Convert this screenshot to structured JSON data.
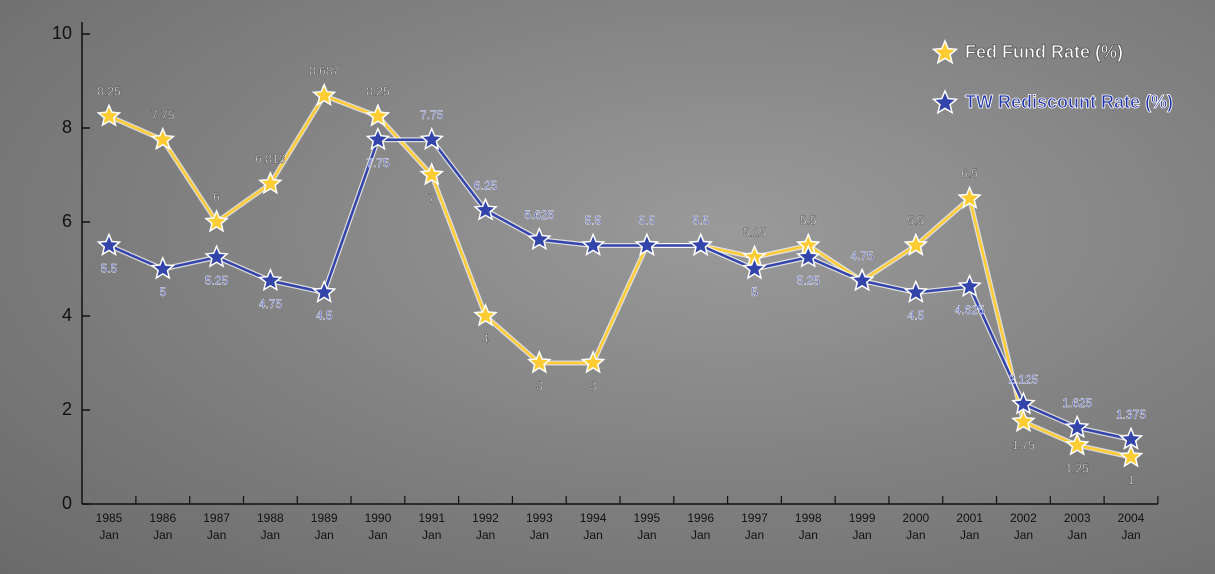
{
  "chart_data": {
    "type": "line",
    "categories": [
      "1985 Jan",
      "1986 Jan",
      "1987 Jan",
      "1988 Jan",
      "1989 Jan",
      "1990 Jan",
      "1991 Jan",
      "1992 Jan",
      "1993 Jan",
      "1994 Jan",
      "1995 Jan",
      "1996 Jan",
      "1997 Jan",
      "1998 Jan",
      "1999 Jan",
      "2000 Jan",
      "2001 Jan",
      "2002 Jan",
      "2003 Jan",
      "2004 Jan"
    ],
    "series": [
      {
        "name": "Fed Fund Rate (%)",
        "color": "#ffcc33",
        "values": [
          8.25,
          7.75,
          6,
          6.813,
          8.687,
          8.25,
          7,
          4,
          3,
          3,
          5.5,
          5.5,
          5.25,
          5.5,
          4.75,
          5.5,
          6.5,
          1.75,
          1.25,
          1
        ]
      },
      {
        "name": "TW Rediscount Rate (%)",
        "color": "#3344aa",
        "values": [
          5.5,
          5,
          5.25,
          4.75,
          4.5,
          7.75,
          7.75,
          6.25,
          5.625,
          5.5,
          5.5,
          5.5,
          5,
          5.25,
          4.75,
          4.5,
          4.625,
          2.125,
          1.625,
          1.375
        ]
      }
    ],
    "ylim": [
      0,
      10
    ],
    "yticks": [
      0,
      2,
      4,
      6,
      8,
      10
    ],
    "legend": "top-right"
  }
}
